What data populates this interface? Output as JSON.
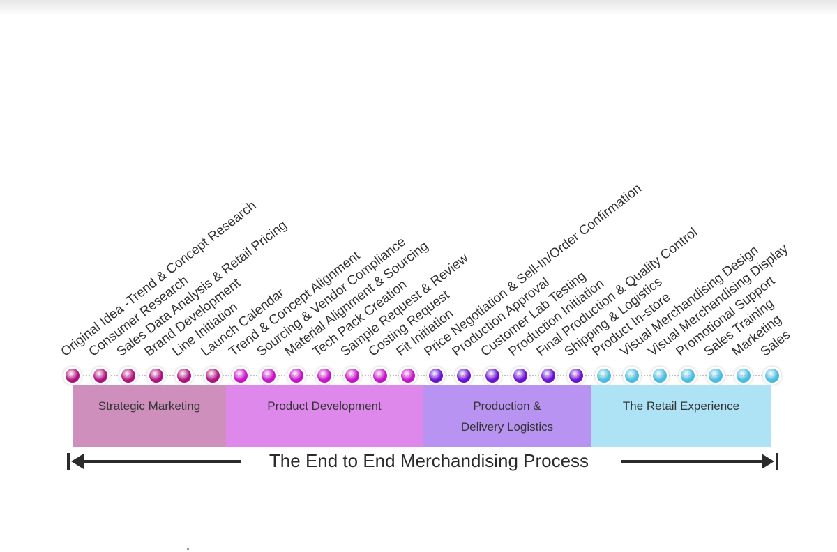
{
  "diagram": {
    "title": "The End to End Merchandising Process",
    "phases": [
      {
        "name": "Strategic Marketing",
        "lines": [
          "Strategic Marketing"
        ],
        "color": "#cf8fbd",
        "dot_color": "#b0117f"
      },
      {
        "name": "Product Development",
        "lines": [
          "Product Development"
        ],
        "color": "#df88ec",
        "dot_color": "#c812c9"
      },
      {
        "name": "Production & Delivery Logistics",
        "lines": [
          "Production &",
          "Delivery Logistics"
        ],
        "color": "#b893f1",
        "dot_color": "#6c10d4"
      },
      {
        "name": "The Retail Experience",
        "lines": [
          "The Retail Experience"
        ],
        "color": "#aee3f5",
        "dot_color": "#49bce0"
      }
    ],
    "steps": [
      {
        "label": "Original Idea -Trend & Concept Research",
        "phase": 0
      },
      {
        "label": "Consumer Research",
        "phase": 0
      },
      {
        "label": "Sales Data Analysis & Retail Pricing",
        "phase": 0
      },
      {
        "label": "Brand Development",
        "phase": 0
      },
      {
        "label": "Line Initiation",
        "phase": 0
      },
      {
        "label": "Launch Calendar",
        "phase": 0
      },
      {
        "label": "Trend & Concept Alignment",
        "phase": 1
      },
      {
        "label": "Sourcing & Vendor Compliance",
        "phase": 1
      },
      {
        "label": "Material Alignment & Sourcing",
        "phase": 1
      },
      {
        "label": "Tech Pack Creation",
        "phase": 1
      },
      {
        "label": "Sample Request & Review",
        "phase": 1
      },
      {
        "label": "Costing Request",
        "phase": 1
      },
      {
        "label": "Fit Initiation",
        "phase": 1
      },
      {
        "label": "Price Negotiation & Sell-In/Order Confirmation",
        "phase": 2
      },
      {
        "label": "Production Approval",
        "phase": 2
      },
      {
        "label": "Customer Lab Testing",
        "phase": 2
      },
      {
        "label": "Production Initiation",
        "phase": 2
      },
      {
        "label": "Final Production & Quality Control",
        "phase": 2
      },
      {
        "label": "Shipping & Logistics",
        "phase": 2
      },
      {
        "label": "Product In-store",
        "phase": 3
      },
      {
        "label": "Visual Merchandising Design",
        "phase": 3
      },
      {
        "label": "Visual Merchandising Display",
        "phase": 3
      },
      {
        "label": "Promotional Support",
        "phase": 3
      },
      {
        "label": "Sales Training",
        "phase": 3
      },
      {
        "label": "Marketing",
        "phase": 3
      },
      {
        "label": "Sales",
        "phase": 3
      }
    ]
  }
}
